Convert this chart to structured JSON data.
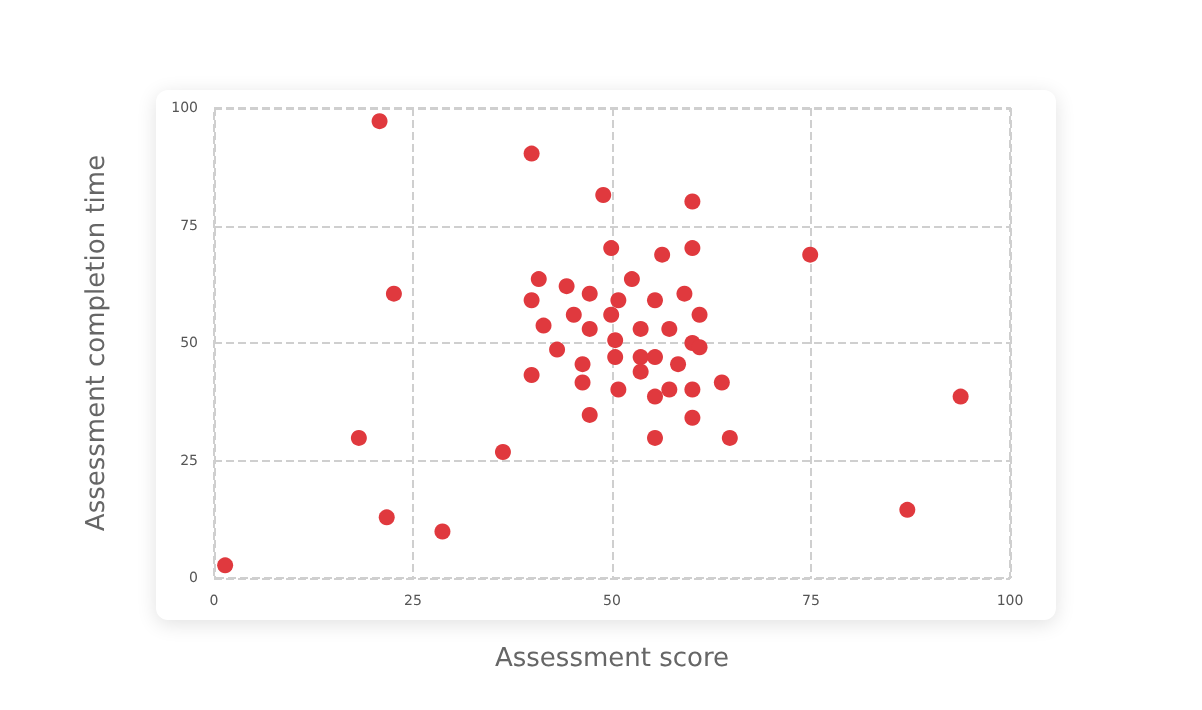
{
  "chart_data": {
    "type": "scatter",
    "xlabel": "Assessment score",
    "ylabel": "Assessment completion time",
    "xlim": [
      0,
      100
    ],
    "ylim": [
      0,
      100
    ],
    "xticks": [
      0,
      25,
      50,
      75,
      100
    ],
    "yticks": [
      0,
      25,
      50,
      75,
      100
    ],
    "grid": true,
    "marker": "circle",
    "series": [
      {
        "color": "#e0393e",
        "x": [
          20.8,
          39.9,
          48.9,
          49.9,
          22.6,
          40.8,
          44.3,
          47.2,
          39.9,
          45.2,
          49.9,
          41.4,
          47.2,
          43.1,
          46.3,
          39.9,
          46.3,
          47.2,
          18.2,
          36.3,
          21.7,
          28.7,
          1.4,
          60.1,
          56.3,
          60.1,
          74.9,
          52.5,
          50.8,
          55.4,
          59.1,
          61.0,
          53.6,
          57.2,
          50.4,
          60.1,
          61.0,
          50.4,
          53.6,
          55.4,
          58.3,
          53.6,
          50.8,
          57.2,
          60.1,
          63.8,
          55.4,
          60.1,
          55.4,
          64.8,
          93.8,
          87.1
        ],
        "values": [
          97.2,
          90.3,
          81.5,
          70.2,
          60.5,
          63.6,
          62.1,
          60.5,
          59.1,
          56.0,
          56.0,
          53.7,
          53.0,
          48.6,
          45.5,
          43.2,
          41.6,
          34.7,
          29.8,
          26.8,
          12.9,
          9.9,
          2.7,
          80.1,
          68.8,
          70.2,
          68.8,
          63.6,
          59.1,
          59.1,
          60.5,
          56.0,
          53.0,
          53.0,
          50.6,
          50.0,
          49.1,
          47.0,
          47.0,
          47.0,
          45.5,
          43.9,
          40.1,
          40.1,
          40.1,
          41.6,
          38.6,
          34.1,
          29.8,
          29.8,
          38.6,
          14.5
        ]
      }
    ]
  }
}
